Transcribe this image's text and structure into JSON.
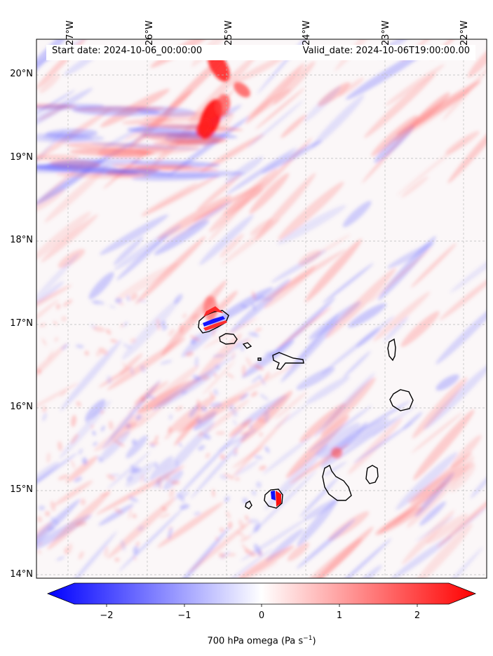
{
  "map": {
    "longitude_labels": [
      "27°W",
      "26°W",
      "25°W",
      "24°W",
      "23°W",
      "22°W"
    ],
    "latitude_labels": [
      "20°N",
      "19°N",
      "18°N",
      "17°N",
      "16°N",
      "15°N",
      "14°N"
    ],
    "start_date": "Start date: 2024-10-06_00:00:00",
    "valid_date": "Valid_date: 2024-10-06T19:00:00.00",
    "gridlines": true,
    "colormap": "bwr",
    "colors": {
      "negative": "#0000ff",
      "zero": "#ffffff",
      "positive": "#ff0000",
      "coastline": "#000000"
    },
    "islands": [
      "Santo Antão",
      "São Vicente",
      "Santa Luzia",
      "São Nicolau",
      "Sal",
      "Boa Vista",
      "Maio",
      "Santiago",
      "Fogo",
      "Brava"
    ]
  },
  "colorbar": {
    "ticks": [
      "−2",
      "−1",
      "0",
      "1",
      "2"
    ],
    "range": [
      -2.6,
      2.6
    ],
    "extend": "both",
    "label_main": "700 hPa omega (Pa s",
    "label_exp": "−1",
    "label_close": ")"
  }
}
